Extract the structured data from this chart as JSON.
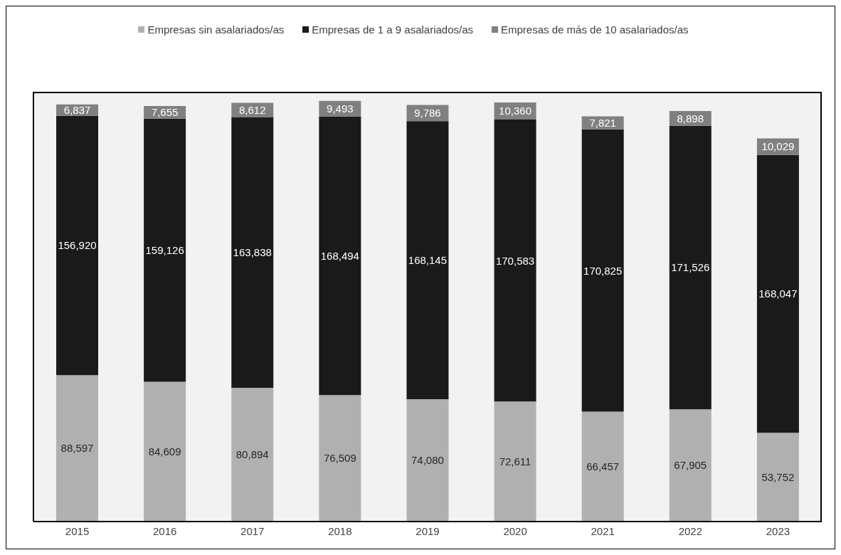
{
  "chart_data": {
    "type": "bar",
    "stacked": true,
    "categories": [
      "2015",
      "2016",
      "2017",
      "2018",
      "2019",
      "2020",
      "2021",
      "2022",
      "2023"
    ],
    "series": [
      {
        "name": "Empresas sin asalariados/as",
        "color": "#b0b0b0",
        "values": [
          88597,
          84609,
          80894,
          76509,
          74080,
          72611,
          66457,
          67905,
          53752
        ],
        "value_labels": [
          "88,597",
          "84,609",
          "80,894",
          "76,509",
          "74,080",
          "72,611",
          "66,457",
          "67,905",
          "53,752"
        ]
      },
      {
        "name": "Empresas de 1 a 9 asalariados/as",
        "color": "#1a1a1a",
        "values": [
          156920,
          159126,
          163838,
          168494,
          168145,
          170583,
          170825,
          171526,
          168047
        ],
        "value_labels": [
          "156,920",
          "159,126",
          "163,838",
          "168,494",
          "168,145",
          "170,583",
          "170,825",
          "171,526",
          "168,047"
        ]
      },
      {
        "name": "Empresas de más de 10 asalariados/as",
        "color": "#808080",
        "values": [
          6837,
          7655,
          8612,
          9493,
          9786,
          10360,
          7821,
          8898,
          10029
        ],
        "value_labels": [
          "6,837",
          "7,655",
          "8,612",
          "9,493",
          "9,786",
          "10,360",
          "7,821",
          "8,898",
          "10,029"
        ]
      }
    ],
    "tick_labels": "x",
    "legend": "top"
  }
}
